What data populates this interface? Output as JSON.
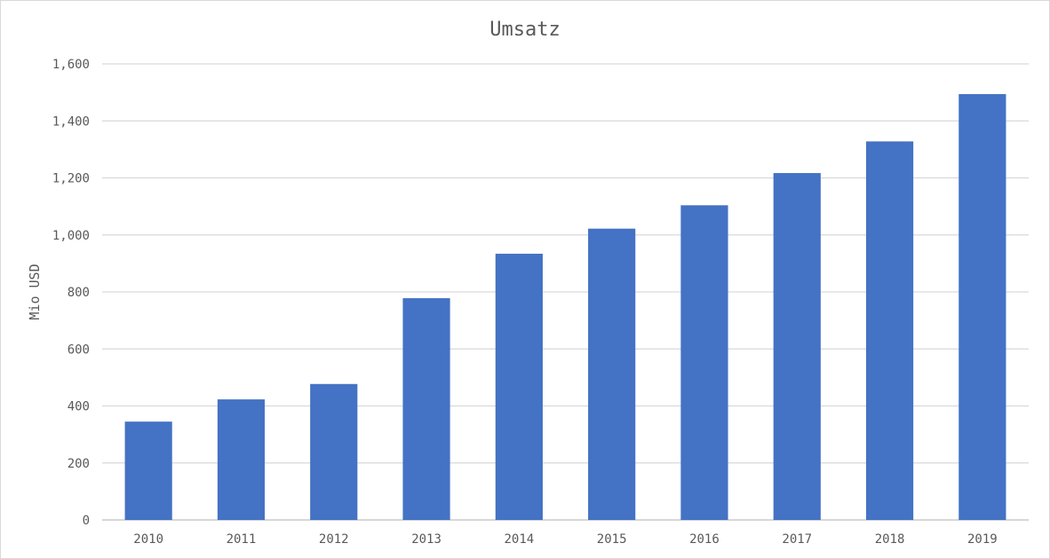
{
  "chart_data": {
    "type": "bar",
    "title": "Umsatz",
    "ylabel": "Mio USD",
    "xlabel": "",
    "categories": [
      "2010",
      "2011",
      "2012",
      "2013",
      "2014",
      "2015",
      "2016",
      "2017",
      "2018",
      "2019"
    ],
    "values": [
      345,
      423,
      477,
      778,
      934,
      1022,
      1104,
      1217,
      1328,
      1494
    ],
    "ylim": [
      0,
      1600
    ],
    "yticks": [
      0,
      200,
      400,
      600,
      800,
      1000,
      1200,
      1400,
      1600
    ],
    "ytick_labels": [
      "0",
      "200",
      "400",
      "600",
      "800",
      "1,000",
      "1,200",
      "1,400",
      "1,600"
    ],
    "grid": true,
    "legend": "none",
    "bar_color": "#4472c4"
  }
}
